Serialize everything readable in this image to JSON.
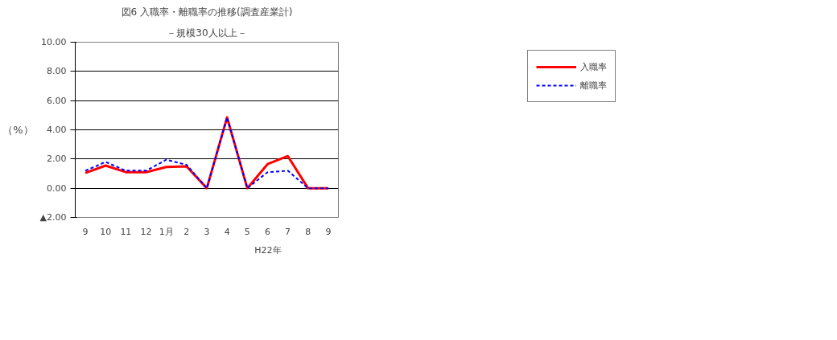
{
  "chart_data": {
    "type": "line",
    "title": "図6 入職率・離職率の推移(調査産業計)",
    "subtitle": "－規模30人以上－",
    "ylabel": "（%）",
    "categories": [
      "9",
      "10",
      "11",
      "12",
      "1月",
      "2",
      "3",
      "4",
      "5",
      "6",
      "7",
      "8",
      "9"
    ],
    "series": [
      {
        "name": "入職率",
        "color": "#ff0000",
        "line_style": "solid",
        "values": [
          1.05,
          1.55,
          1.1,
          1.1,
          1.45,
          1.5,
          0,
          4.85,
          0,
          1.65,
          2.2,
          0,
          0
        ]
      },
      {
        "name": "離職率",
        "color": "#0000ff",
        "line_style": "dashed",
        "values": [
          1.2,
          1.8,
          1.2,
          1.2,
          1.95,
          1.6,
          0,
          4.85,
          0,
          1.1,
          1.2,
          0,
          0
        ]
      }
    ],
    "annotations": [
      "H22年"
    ],
    "ylim": [
      -2,
      10
    ],
    "yticks": [
      {
        "value": -2,
        "label": "▲2.00"
      },
      {
        "value": 0,
        "label": "0.00"
      },
      {
        "value": 2,
        "label": "2.00"
      },
      {
        "value": 4,
        "label": "4.00"
      },
      {
        "value": 6,
        "label": "6.00"
      },
      {
        "value": 8,
        "label": "8.00"
      },
      {
        "value": 10,
        "label": "10.00"
      }
    ],
    "grid": "y",
    "legend": "top right",
    "marker": "none"
  }
}
